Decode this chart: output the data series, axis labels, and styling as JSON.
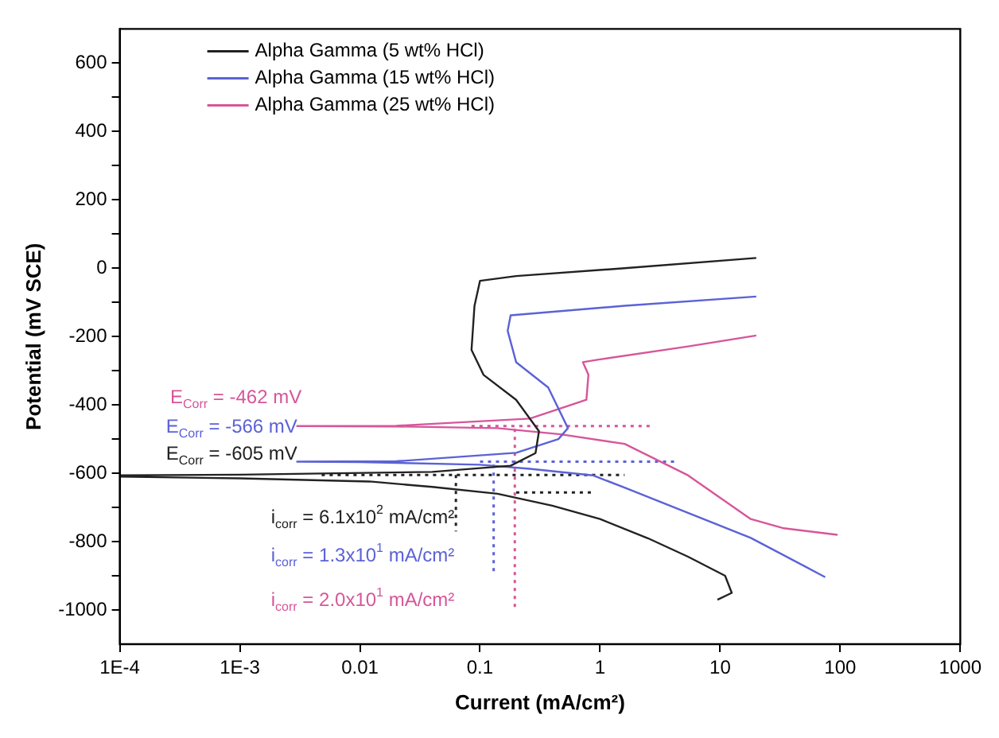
{
  "chart_data": {
    "type": "line",
    "xlabel": "Current (mA/cm²)",
    "ylabel": "Potential (mV SCE)",
    "log": "x",
    "grid": false,
    "legend": "top left",
    "line_style": "solid",
    "marker": "none",
    "xlim": [
      0.0001,
      1000
    ],
    "xticks": [
      {
        "value": 0.0001,
        "label": "1E-4"
      },
      {
        "value": 0.001,
        "label": "1E-3"
      },
      0.01,
      0.1,
      1,
      10,
      100,
      1000
    ],
    "ylim": [
      -1100,
      700
    ],
    "yticks": [
      -1000,
      {
        "value": -900,
        "label": null
      },
      -800,
      {
        "value": -700,
        "label": null
      },
      -600,
      {
        "value": -500,
        "label": null
      },
      -400,
      {
        "value": -300,
        "label": null
      },
      -200,
      {
        "value": -100,
        "label": null
      },
      0,
      {
        "value": 100,
        "label": null
      },
      200,
      {
        "value": 300,
        "label": null
      },
      400,
      {
        "value": 500,
        "label": null
      },
      600
    ],
    "series": [
      {
        "name": "Alpha Gamma (5 wt% HCl)",
        "color": "#222222",
        "x": [
          9.5,
          12.5,
          11,
          5.4,
          2.5,
          1,
          0.4,
          0.14,
          0.04,
          0.012,
          0.001,
          0.0001,
          0.0001,
          0.001,
          0.04,
          0.18,
          0.29,
          0.31,
          0.2,
          0.107,
          0.085,
          0.09,
          0.1,
          0.2,
          1.6,
          20
        ],
        "values": [
          -970,
          -950,
          -900,
          -844,
          -790,
          -734,
          -695,
          -660,
          -640,
          -624,
          -615,
          -610,
          -606,
          -604,
          -596,
          -578,
          -541,
          -477,
          -385,
          -312,
          -239,
          -110,
          -37,
          -23,
          0,
          30
        ]
      },
      {
        "name": "Alpha Gamma (15 wt% HCl)",
        "color": "#5b62d6",
        "x": [
          75,
          18,
          1.6,
          0.87,
          0.26,
          0.1,
          0.01,
          0.003,
          0.02,
          0.2,
          0.45,
          0.54,
          0.37,
          0.2,
          0.17,
          0.18,
          1.6,
          20
        ],
        "values": [
          -904,
          -789,
          -642,
          -606,
          -587,
          -575,
          -567,
          -566,
          -565,
          -540,
          -500,
          -468,
          -349,
          -275,
          -183,
          -138,
          -110,
          -83
        ]
      },
      {
        "name": "Alpha Gamma (25 wt% HCl)",
        "color": "#d6569a",
        "x": [
          95,
          34,
          18,
          5.4,
          1.6,
          0.47,
          0.14,
          0.02,
          0.003,
          0.02,
          0.26,
          0.77,
          0.8,
          0.72,
          0.95,
          5.4,
          20
        ],
        "values": [
          -780,
          -761,
          -734,
          -606,
          -514,
          -486,
          -468,
          -463,
          -462,
          -461,
          -440,
          -385,
          -312,
          -275,
          -268,
          -229,
          -197
        ]
      },
      {
        "color": "#d6569a",
        "line_style": "dotted",
        "x": [
          0.085,
          2.8
        ],
        "values": [
          -462,
          -462
        ]
      },
      {
        "color": "#5b62d6",
        "line_style": "dotted",
        "x": [
          0.1,
          4.5
        ],
        "values": [
          -566,
          -566
        ]
      },
      {
        "color": "#222222",
        "line_style": "dotted",
        "x": [
          0.0048,
          1.6
        ],
        "values": [
          -605,
          -605
        ]
      },
      {
        "color": "#222222",
        "line_style": "dotted",
        "x": [
          0.2,
          0.9
        ],
        "values": [
          -656,
          -656
        ]
      },
      {
        "color": "#d6569a",
        "line_style": "dotted",
        "x": [
          0.195,
          0.195
        ],
        "values": [
          -470,
          -1000
        ]
      },
      {
        "color": "#5b62d6",
        "line_style": "dotted",
        "x": [
          0.13,
          0.13
        ],
        "values": [
          -575,
          -890
        ]
      },
      {
        "color": "#222222",
        "line_style": "dotted",
        "x": [
          0.063,
          0.063
        ],
        "values": [
          -605,
          -770
        ]
      }
    ],
    "annotations": [
      "E$_{Corr}$ = -462 mV",
      "E$_{Corr}$ = -566 mV",
      "E$_{Corr}$ = -605 mV",
      "i$_{corr}$ = 6.1x10$^{2}$ mA/cm²",
      "i$_{corr}$ = 1.3x10$^{1}$ mA/cm²",
      "i$_{corr}$ = 2.0x10$^{1}$ mA/cm²"
    ]
  }
}
